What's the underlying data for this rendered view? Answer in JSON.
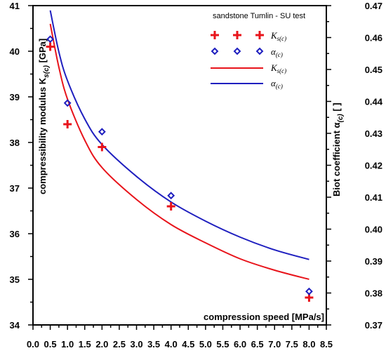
{
  "chart_data": {
    "type": "scatter",
    "title": "sandstone Tumlin - SU test",
    "x_axis": {
      "label": "compression speed [MPa/s]",
      "range": [
        0.0,
        8.5
      ],
      "ticks": [
        "0.0",
        "0.5",
        "1.0",
        "1.5",
        "2.0",
        "2.5",
        "3.0",
        "3.5",
        "4.0",
        "4.5",
        "5.0",
        "5.5",
        "6.0",
        "6.5",
        "7.0",
        "7.5",
        "8.0",
        "8.5"
      ]
    },
    "y_left_axis": {
      "label_main": "compressibility modulus K",
      "label_sub": "s(c)",
      "label_unit": " [GPa]",
      "range": [
        34,
        41
      ],
      "ticks": [
        "34",
        "35",
        "36",
        "37",
        "38",
        "39",
        "40",
        "41"
      ]
    },
    "y_right_axis": {
      "label_main": "Biot coefficient α",
      "label_sub": "(c)",
      "label_unit": " [ ]",
      "range": [
        0.37,
        0.47
      ],
      "ticks": [
        "0.37",
        "0.38",
        "0.39",
        "0.40",
        "0.41",
        "0.42",
        "0.43",
        "0.44",
        "0.45",
        "0.46",
        "0.47"
      ]
    },
    "legend": {
      "placement": "top-right",
      "entries": [
        {
          "marker": "plus",
          "text": "K",
          "sub": "s(c)"
        },
        {
          "marker": "diamond",
          "text": "α",
          "sub": "(c)"
        },
        {
          "marker": "line-red",
          "text": "K",
          "sub": "s(c)"
        },
        {
          "marker": "line-blue",
          "text": "α",
          "sub": "(c)"
        }
      ]
    },
    "series": [
      {
        "kind": "points",
        "marker": "plus",
        "axis": "left",
        "color": "#e8141b",
        "points": [
          [
            0.5,
            40.1
          ],
          [
            1.0,
            38.4
          ],
          [
            2.0,
            37.9
          ],
          [
            4.0,
            36.6
          ],
          [
            8.0,
            34.6
          ]
        ]
      },
      {
        "kind": "points",
        "marker": "diamond",
        "axis": "right",
        "color": "#1f1fbf",
        "points": [
          [
            0.5,
            0.4595
          ],
          [
            1.0,
            0.4395
          ],
          [
            2.0,
            0.4305
          ],
          [
            4.0,
            0.4105
          ],
          [
            8.0,
            0.3805
          ]
        ]
      },
      {
        "kind": "fit",
        "axis": "left",
        "color": "#e8141b",
        "points": [
          [
            0.5,
            40.6
          ],
          [
            0.75,
            39.65
          ],
          [
            1.0,
            38.95
          ],
          [
            1.5,
            38.05
          ],
          [
            2.0,
            37.45
          ],
          [
            3.0,
            36.75
          ],
          [
            4.0,
            36.2
          ],
          [
            5.0,
            35.8
          ],
          [
            6.0,
            35.45
          ],
          [
            7.0,
            35.2
          ],
          [
            8.0,
            35.0
          ]
        ]
      },
      {
        "kind": "fit",
        "axis": "right",
        "color": "#1f1fbf",
        "points": [
          [
            0.5,
            0.4685
          ],
          [
            0.75,
            0.4555
          ],
          [
            1.0,
            0.4465
          ],
          [
            1.5,
            0.4345
          ],
          [
            2.0,
            0.4265
          ],
          [
            3.0,
            0.4165
          ],
          [
            4.0,
            0.4085
          ],
          [
            5.0,
            0.4025
          ],
          [
            6.0,
            0.3975
          ],
          [
            7.0,
            0.3935
          ],
          [
            8.0,
            0.3905
          ]
        ]
      }
    ]
  }
}
